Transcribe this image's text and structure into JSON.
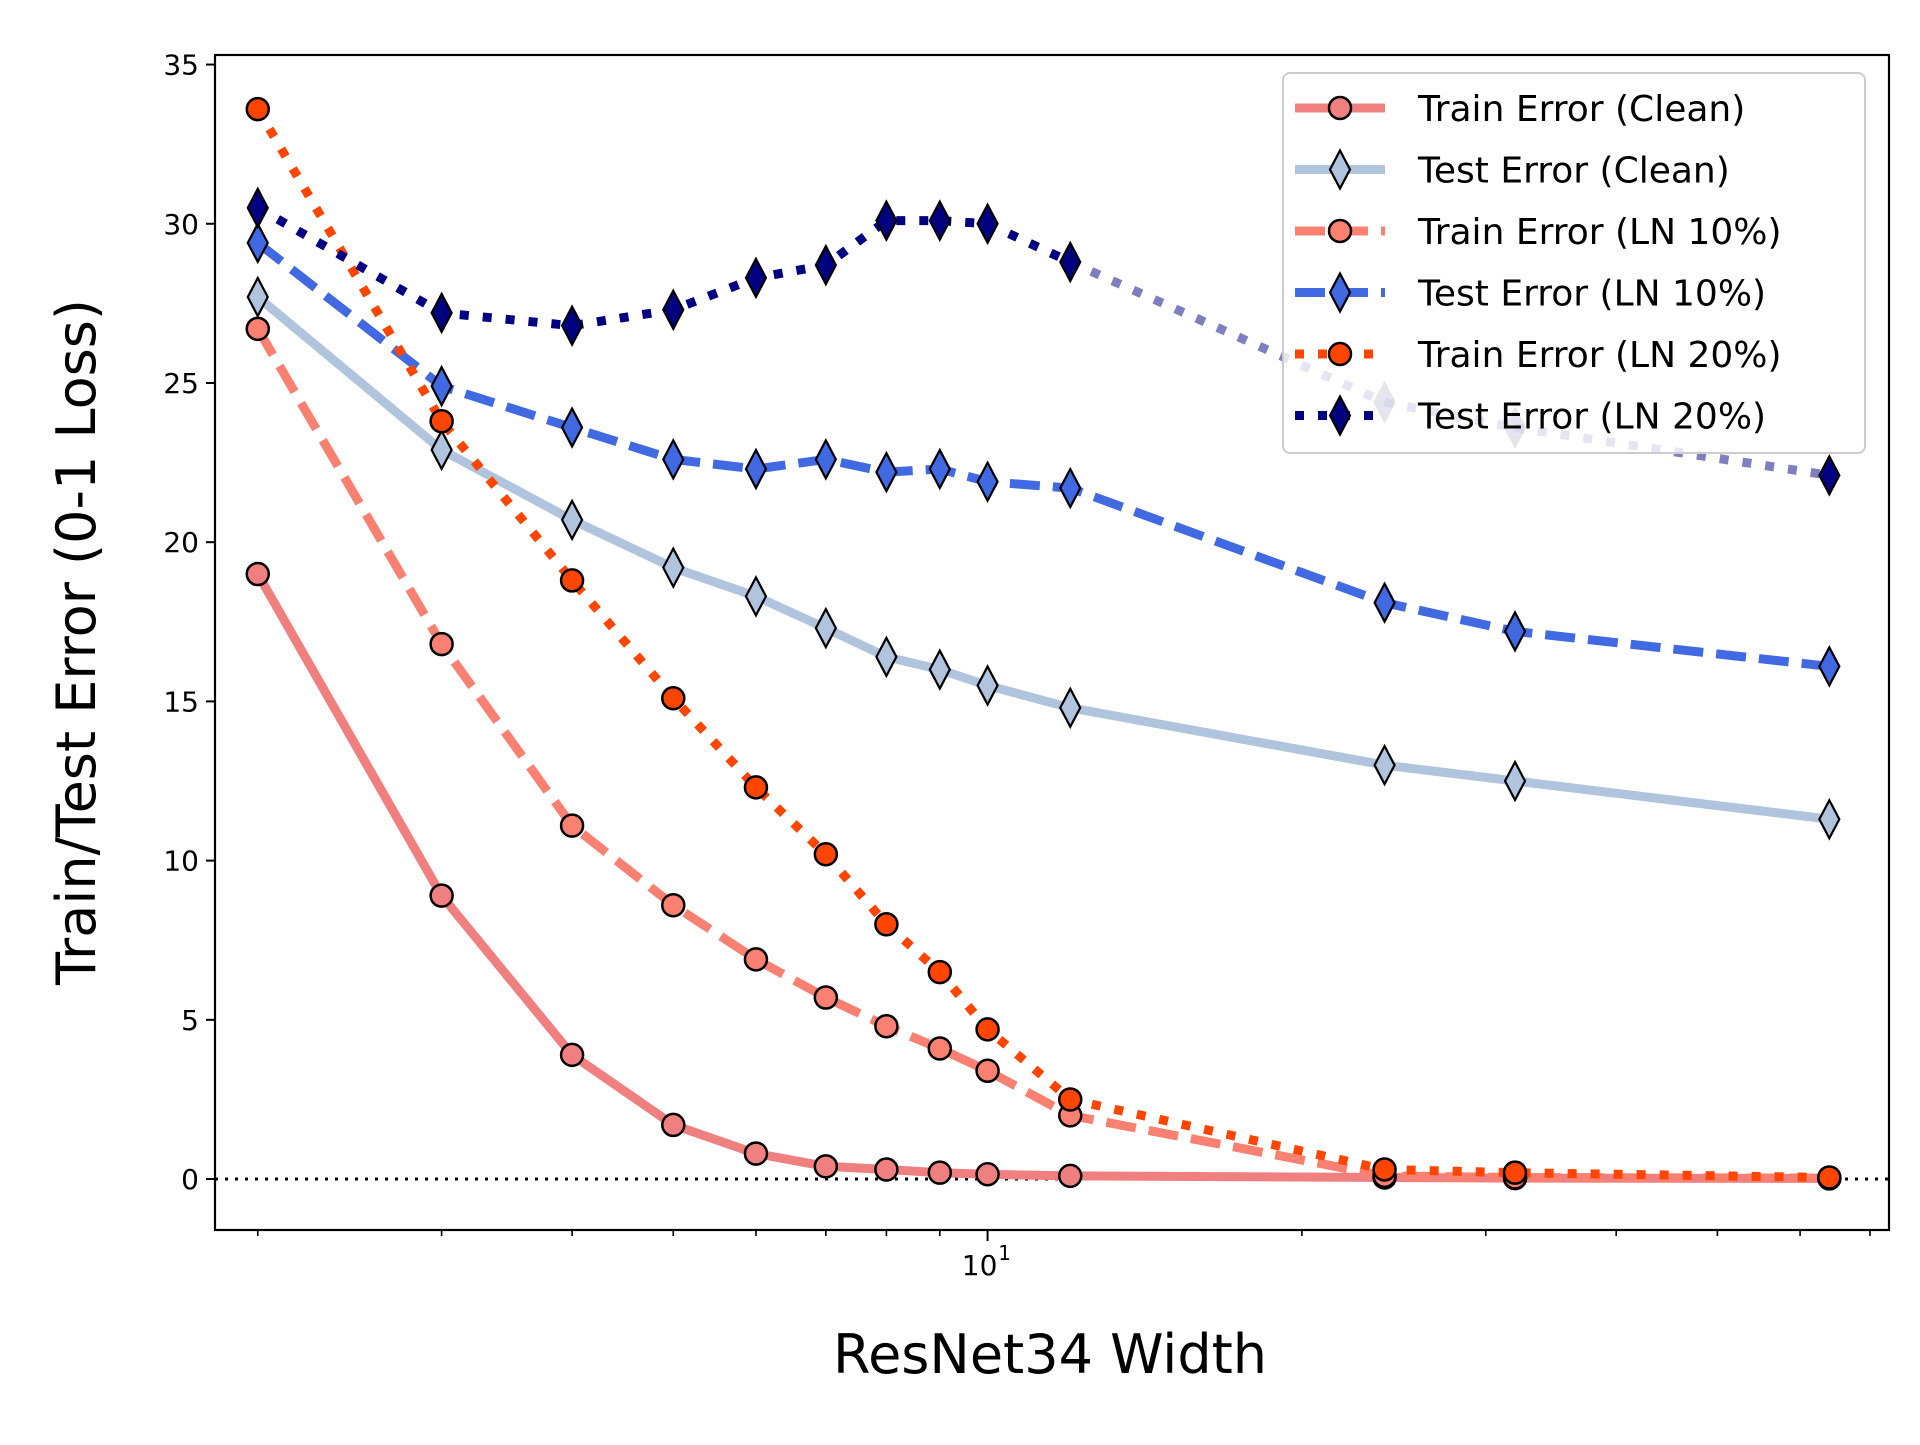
{
  "chart_data": {
    "type": "line",
    "title": "",
    "xlabel": "ResNet34 Width",
    "ylabel": "Train/Test Error (0-1 Loss)",
    "xscale": "log",
    "xlim": [
      1.82,
      73
    ],
    "ylim": [
      -1.6,
      35.3
    ],
    "yticks": [
      0,
      5,
      10,
      15,
      20,
      25,
      30,
      35
    ],
    "xtick_major_labels": [
      {
        "value": 10,
        "base": "10",
        "exp": "1"
      }
    ],
    "xtick_minor": [
      2,
      3,
      4,
      5,
      6,
      7,
      8,
      9,
      20,
      30,
      40,
      50,
      60,
      70
    ],
    "grid": false,
    "legend_position": "top-right",
    "reference_line": {
      "y": 0,
      "style": "dotted",
      "color": "#000000"
    },
    "x": [
      2,
      3,
      4,
      5,
      6,
      7,
      8,
      9,
      10,
      12,
      24,
      32,
      64
    ],
    "series": [
      {
        "name": "Train Error (Clean)",
        "color": "#F08080",
        "marker_fill": "#F08080",
        "marker": "circle",
        "dash": "solid",
        "alpha": 1,
        "x": [
          2,
          3,
          4,
          5,
          6,
          7,
          8,
          9,
          10,
          12,
          24,
          32,
          64
        ],
        "values": [
          19.0,
          8.9,
          3.9,
          1.7,
          0.8,
          0.4,
          0.3,
          0.2,
          0.15,
          0.1,
          0.05,
          0.03,
          0.02
        ]
      },
      {
        "name": "Test Error  (Clean)",
        "color": "#B0C4DE",
        "marker_fill": "#B0C4DE",
        "marker": "diamond",
        "dash": "solid",
        "alpha": 1,
        "x": [
          2,
          3,
          4,
          5,
          6,
          7,
          8,
          9,
          10,
          12,
          24,
          32,
          64
        ],
        "values": [
          27.7,
          22.9,
          20.7,
          19.2,
          18.3,
          17.3,
          16.4,
          16.0,
          15.5,
          14.8,
          13.0,
          12.5,
          11.3
        ]
      },
      {
        "name": "Train Error (LN 10%)",
        "color": "#FA8072",
        "marker_fill": "#FA8072",
        "marker": "circle",
        "dash": "dashed",
        "alpha": 1,
        "x": [
          2,
          3,
          4,
          5,
          6,
          7,
          8,
          9,
          10,
          12,
          24,
          32,
          64
        ],
        "values": [
          26.7,
          16.8,
          11.1,
          8.6,
          6.9,
          5.7,
          4.8,
          4.1,
          3.4,
          2.0,
          0.1,
          0.05,
          0.03
        ]
      },
      {
        "name": "Test Error  (LN 10%)",
        "color": "#4169E1",
        "marker_fill": "#4169E1",
        "marker": "diamond",
        "dash": "dashed",
        "alpha": 1,
        "x": [
          2,
          3,
          4,
          5,
          6,
          7,
          8,
          9,
          10,
          12,
          24,
          32,
          64
        ],
        "values": [
          29.4,
          24.9,
          23.6,
          22.6,
          22.3,
          22.6,
          22.2,
          22.3,
          21.9,
          21.7,
          18.1,
          17.2,
          16.1
        ]
      },
      {
        "name": "Train Error (LN 20%)",
        "color": "#FF4500",
        "marker_fill": "#FF4500",
        "marker": "circle",
        "dash": "dotted",
        "alpha": 1,
        "x": [
          2,
          3,
          4,
          5,
          6,
          7,
          8,
          9,
          10,
          12,
          24,
          32,
          64
        ],
        "values": [
          33.6,
          23.8,
          18.8,
          15.1,
          12.3,
          10.2,
          8.0,
          6.5,
          4.7,
          2.5,
          0.3,
          0.2,
          0.05
        ]
      },
      {
        "name": "Test Error  (LN 20%)",
        "color": "#000080",
        "marker_fill": "#000080",
        "marker": "diamond",
        "dash": "dotted",
        "alpha": 1,
        "x": [
          2,
          3,
          4,
          5,
          6,
          7,
          8,
          9,
          10,
          12
        ],
        "values": [
          30.5,
          27.2,
          26.8,
          27.3,
          28.3,
          28.7,
          30.1,
          30.1,
          30.0,
          28.8
        ]
      },
      {
        "name": "",
        "color": "#000080",
        "marker_fill": "#000080",
        "marker": "diamond",
        "dash": "dotted",
        "alpha": 0.5,
        "x": [
          24,
          32
        ],
        "values": [
          24.4,
          23.6
        ]
      },
      {
        "name": "",
        "color": "#000080",
        "marker_fill": "#000080",
        "marker": "diamond",
        "dash": "dotted",
        "alpha": 1,
        "x": [
          64
        ],
        "values": [
          22.1
        ]
      }
    ]
  }
}
